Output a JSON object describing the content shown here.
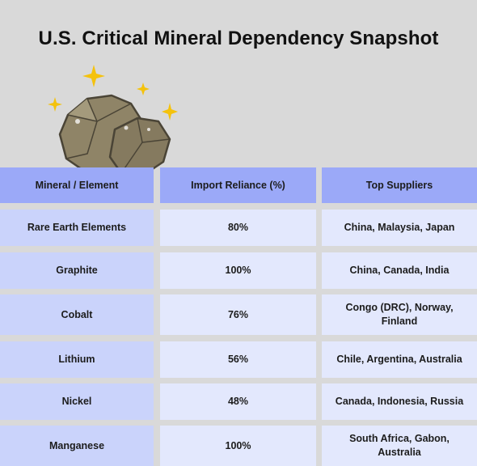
{
  "title": "U.S. Critical Mineral Dependency Snapshot",
  "decoration": {
    "rock_icon": "mineral-rocks",
    "sparkle_icon": "sparkle-stars",
    "colors": {
      "rock": "#8f8467",
      "rock_dark": "#5c5442",
      "sparkle": "#f4c20d",
      "header": "#9ba9f8",
      "first_column": "#cad3fb",
      "cells": "#e3e8fd",
      "background": "#d9d9d9"
    }
  },
  "table": {
    "columns": [
      "Mineral / Element",
      "Import Reliance (%)",
      "Top Suppliers"
    ],
    "rows": [
      [
        "Rare Earth Elements",
        "80%",
        "China, Malaysia, Japan"
      ],
      [
        "Graphite",
        "100%",
        "China, Canada, India"
      ],
      [
        "Cobalt",
        "76%",
        "Congo (DRC), Norway, Finland"
      ],
      [
        "Lithium",
        "56%",
        "Chile, Argentina, Australia"
      ],
      [
        "Nickel",
        "48%",
        "Canada, Indonesia, Russia"
      ],
      [
        "Manganese",
        "100%",
        "South Africa, Gabon, Australia"
      ]
    ]
  }
}
